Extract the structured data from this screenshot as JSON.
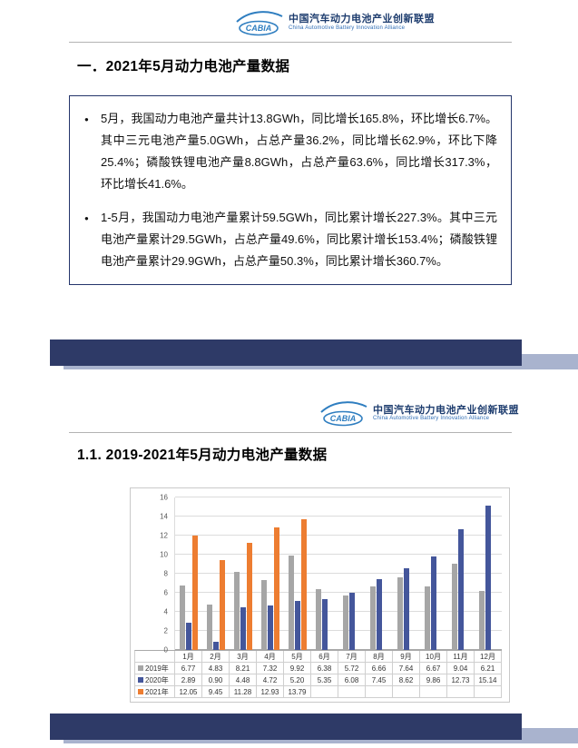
{
  "header": {
    "logo_text": "CABIA",
    "org_cn": "中国汽车动力电池产业创新联盟",
    "org_en": "China Automotive Battery Innovation Alliance"
  },
  "page1": {
    "section_title": "一．2021年5月动力电池产量数据",
    "bullets": [
      "5月，我国动力电池产量共计13.8GWh，同比增长165.8%，环比增长6.7%。其中三元电池产量5.0GWh，占总产量36.2%，同比增长62.9%，环比下降25.4%；磷酸铁锂电池产量8.8GWh，占总产量63.6%，同比增长317.3%，环比增长41.6%。",
      "1-5月，我国动力电池产量累计59.5GWh，同比累计增长227.3%。其中三元电池产量累计29.5GWh，占总产量49.6%，同比累计增长153.4%；磷酸铁锂电池产量累计29.9GWh，占总产量50.3%，同比累计增长360.7%。"
    ]
  },
  "page2": {
    "section_title": "1.1. 2019-2021年5月动力电池产量数据"
  },
  "chart_data": {
    "type": "bar",
    "title": "",
    "xlabel": "",
    "ylabel": "",
    "categories": [
      "1月",
      "2月",
      "3月",
      "4月",
      "5月",
      "6月",
      "7月",
      "8月",
      "9月",
      "10月",
      "11月",
      "12月"
    ],
    "series": [
      {
        "name": "2019年",
        "color": "#a6a6a6",
        "values": [
          6.77,
          4.83,
          8.21,
          7.32,
          9.92,
          6.38,
          5.72,
          6.66,
          7.64,
          6.67,
          9.04,
          6.21
        ]
      },
      {
        "name": "2020年",
        "color": "#44569b",
        "values": [
          2.89,
          0.9,
          4.48,
          4.72,
          5.2,
          5.35,
          6.08,
          7.45,
          8.62,
          9.86,
          12.73,
          15.14
        ]
      },
      {
        "name": "2021年",
        "color": "#ed7d31",
        "values": [
          12.05,
          9.45,
          11.28,
          12.93,
          13.79,
          null,
          null,
          null,
          null,
          null,
          null,
          null
        ]
      }
    ],
    "ylim": [
      0,
      16
    ],
    "ytick_step": 2,
    "grid": true,
    "legend_position": "bottom-table"
  },
  "colors": {
    "footer_dark": "#2e3a67",
    "footer_light": "#a9b3ce",
    "logo_blue": "#2f7ec0",
    "box_border": "#24356b"
  }
}
